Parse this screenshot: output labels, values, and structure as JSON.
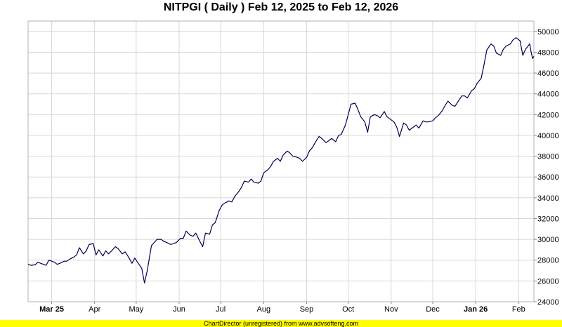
{
  "title": "NITPGI ( Daily ) Feb 12, 2025 to Feb 12, 2026",
  "footer": "ChartDirector (unregistered) from www.advsofteng.com",
  "colors": {
    "line": "#000050",
    "grid": "#d8d8d8",
    "footer_bg": "#ffff00"
  },
  "chart_data": {
    "type": "line",
    "title": "NITPGI ( Daily ) Feb 12, 2025 to Feb 12, 2026",
    "xlim": [
      "2025-02-12",
      "2026-02-12"
    ],
    "ylim": [
      24000,
      51000
    ],
    "y_axis_position": "right",
    "grid": true,
    "x_ticks": [
      {
        "date": "2025-03-01",
        "label": "Mar 25",
        "bold": true
      },
      {
        "date": "2025-04-01",
        "label": "Apr",
        "bold": false
      },
      {
        "date": "2025-05-01",
        "label": "May",
        "bold": false
      },
      {
        "date": "2025-06-01",
        "label": "Jun",
        "bold": false
      },
      {
        "date": "2025-07-01",
        "label": "Jul",
        "bold": false
      },
      {
        "date": "2025-08-01",
        "label": "Aug",
        "bold": false
      },
      {
        "date": "2025-09-01",
        "label": "Sep",
        "bold": false
      },
      {
        "date": "2025-10-01",
        "label": "Oct",
        "bold": false
      },
      {
        "date": "2025-11-01",
        "label": "Nov",
        "bold": false
      },
      {
        "date": "2025-12-01",
        "label": "Dec",
        "bold": false
      },
      {
        "date": "2026-01-01",
        "label": "Jan 26",
        "bold": true
      },
      {
        "date": "2026-02-01",
        "label": "Feb",
        "bold": false
      }
    ],
    "y_ticks": [
      24000,
      26000,
      28000,
      30000,
      32000,
      34000,
      36000,
      38000,
      40000,
      42000,
      44000,
      46000,
      48000,
      50000
    ],
    "series": [
      {
        "points": [
          [
            "2025-02-12",
            27600
          ],
          [
            "2025-02-14",
            27500
          ],
          [
            "2025-02-17",
            27550
          ],
          [
            "2025-02-19",
            27800
          ],
          [
            "2025-02-21",
            27700
          ],
          [
            "2025-02-25",
            27500
          ],
          [
            "2025-02-27",
            28000
          ],
          [
            "2025-03-03",
            27800
          ],
          [
            "2025-03-05",
            27600
          ],
          [
            "2025-03-07",
            27700
          ],
          [
            "2025-03-10",
            27900
          ],
          [
            "2025-03-12",
            27900
          ],
          [
            "2025-03-14",
            28100
          ],
          [
            "2025-03-17",
            28300
          ],
          [
            "2025-03-19",
            28500
          ],
          [
            "2025-03-21",
            29200
          ],
          [
            "2025-03-24",
            28600
          ],
          [
            "2025-03-26",
            28900
          ],
          [
            "2025-03-28",
            29500
          ],
          [
            "2025-03-31",
            29600
          ],
          [
            "2025-04-02",
            28500
          ],
          [
            "2025-04-04",
            29000
          ],
          [
            "2025-04-07",
            28400
          ],
          [
            "2025-04-09",
            28900
          ],
          [
            "2025-04-11",
            28600
          ],
          [
            "2025-04-14",
            29000
          ],
          [
            "2025-04-16",
            29300
          ],
          [
            "2025-04-18",
            29100
          ],
          [
            "2025-04-21",
            28600
          ],
          [
            "2025-04-23",
            28800
          ],
          [
            "2025-04-25",
            28400
          ],
          [
            "2025-04-28",
            27700
          ],
          [
            "2025-04-30",
            28200
          ],
          [
            "2025-05-02",
            27800
          ],
          [
            "2025-05-05",
            27200
          ],
          [
            "2025-05-07",
            25800
          ],
          [
            "2025-05-09",
            27000
          ],
          [
            "2025-05-12",
            29400
          ],
          [
            "2025-05-14",
            29700
          ],
          [
            "2025-05-16",
            30000
          ],
          [
            "2025-05-19",
            30000
          ],
          [
            "2025-05-21",
            29800
          ],
          [
            "2025-05-23",
            29700
          ],
          [
            "2025-05-26",
            29500
          ],
          [
            "2025-05-28",
            29600
          ],
          [
            "2025-05-30",
            29700
          ],
          [
            "2025-06-02",
            30100
          ],
          [
            "2025-06-04",
            30100
          ],
          [
            "2025-06-06",
            30800
          ],
          [
            "2025-06-09",
            30400
          ],
          [
            "2025-06-11",
            30300
          ],
          [
            "2025-06-13",
            30600
          ],
          [
            "2025-06-16",
            29800
          ],
          [
            "2025-06-18",
            29300
          ],
          [
            "2025-06-20",
            30600
          ],
          [
            "2025-06-23",
            30500
          ],
          [
            "2025-06-25",
            31400
          ],
          [
            "2025-06-27",
            31600
          ],
          [
            "2025-06-30",
            32800
          ],
          [
            "2025-07-02",
            33300
          ],
          [
            "2025-07-04",
            33500
          ],
          [
            "2025-07-07",
            33700
          ],
          [
            "2025-07-09",
            33600
          ],
          [
            "2025-07-11",
            34100
          ],
          [
            "2025-07-14",
            34600
          ],
          [
            "2025-07-16",
            35000
          ],
          [
            "2025-07-18",
            35600
          ],
          [
            "2025-07-21",
            35500
          ],
          [
            "2025-07-23",
            35800
          ],
          [
            "2025-07-25",
            35500
          ],
          [
            "2025-07-28",
            35400
          ],
          [
            "2025-07-30",
            35600
          ],
          [
            "2025-08-01",
            36400
          ],
          [
            "2025-08-04",
            36700
          ],
          [
            "2025-08-06",
            37000
          ],
          [
            "2025-08-08",
            37500
          ],
          [
            "2025-08-11",
            37800
          ],
          [
            "2025-08-13",
            37500
          ],
          [
            "2025-08-15",
            38100
          ],
          [
            "2025-08-18",
            38500
          ],
          [
            "2025-08-20",
            38300
          ],
          [
            "2025-08-22",
            38000
          ],
          [
            "2025-08-25",
            37900
          ],
          [
            "2025-08-27",
            37800
          ],
          [
            "2025-08-29",
            37500
          ],
          [
            "2025-09-01",
            37900
          ],
          [
            "2025-09-03",
            38500
          ],
          [
            "2025-09-05",
            38800
          ],
          [
            "2025-09-08",
            39500
          ],
          [
            "2025-09-10",
            39900
          ],
          [
            "2025-09-12",
            39700
          ],
          [
            "2025-09-15",
            39300
          ],
          [
            "2025-09-17",
            39500
          ],
          [
            "2025-09-19",
            39700
          ],
          [
            "2025-09-22",
            39400
          ],
          [
            "2025-09-24",
            40000
          ],
          [
            "2025-09-26",
            40100
          ],
          [
            "2025-09-29",
            41000
          ],
          [
            "2025-10-01",
            42000
          ],
          [
            "2025-10-03",
            43000
          ],
          [
            "2025-10-06",
            43100
          ],
          [
            "2025-10-08",
            42500
          ],
          [
            "2025-10-10",
            41800
          ],
          [
            "2025-10-13",
            41300
          ],
          [
            "2025-10-15",
            40300
          ],
          [
            "2025-10-17",
            41800
          ],
          [
            "2025-10-20",
            42000
          ],
          [
            "2025-10-22",
            41900
          ],
          [
            "2025-10-24",
            41700
          ],
          [
            "2025-10-27",
            42300
          ],
          [
            "2025-10-29",
            41800
          ],
          [
            "2025-10-31",
            41600
          ],
          [
            "2025-11-03",
            41300
          ],
          [
            "2025-11-05",
            40800
          ],
          [
            "2025-11-07",
            39900
          ],
          [
            "2025-11-10",
            41200
          ],
          [
            "2025-11-12",
            41000
          ],
          [
            "2025-11-14",
            40500
          ],
          [
            "2025-11-17",
            40800
          ],
          [
            "2025-11-19",
            41000
          ],
          [
            "2025-11-21",
            40700
          ],
          [
            "2025-11-24",
            41400
          ],
          [
            "2025-11-26",
            41300
          ],
          [
            "2025-11-28",
            41300
          ],
          [
            "2025-12-01",
            41400
          ],
          [
            "2025-12-03",
            41700
          ],
          [
            "2025-12-05",
            41900
          ],
          [
            "2025-12-08",
            42400
          ],
          [
            "2025-12-10",
            42900
          ],
          [
            "2025-12-12",
            43300
          ],
          [
            "2025-12-15",
            42900
          ],
          [
            "2025-12-17",
            42800
          ],
          [
            "2025-12-19",
            43200
          ],
          [
            "2025-12-22",
            43800
          ],
          [
            "2025-12-24",
            43800
          ],
          [
            "2025-12-26",
            43600
          ],
          [
            "2025-12-29",
            44300
          ],
          [
            "2025-12-31",
            44500
          ],
          [
            "2026-01-02",
            45000
          ],
          [
            "2026-01-05",
            45500
          ],
          [
            "2026-01-07",
            46800
          ],
          [
            "2026-01-09",
            48200
          ],
          [
            "2026-01-12",
            48800
          ],
          [
            "2026-01-14",
            48600
          ],
          [
            "2026-01-16",
            47900
          ],
          [
            "2026-01-19",
            47700
          ],
          [
            "2026-01-21",
            48300
          ],
          [
            "2026-01-23",
            48600
          ],
          [
            "2026-01-26",
            48800
          ],
          [
            "2026-01-28",
            49200
          ],
          [
            "2026-01-30",
            49400
          ],
          [
            "2026-02-02",
            49100
          ],
          [
            "2026-02-04",
            47700
          ],
          [
            "2026-02-06",
            48300
          ],
          [
            "2026-02-09",
            48800
          ],
          [
            "2026-02-10",
            48000
          ],
          [
            "2026-02-11",
            47400
          ],
          [
            "2026-02-12",
            47600
          ]
        ]
      }
    ]
  }
}
